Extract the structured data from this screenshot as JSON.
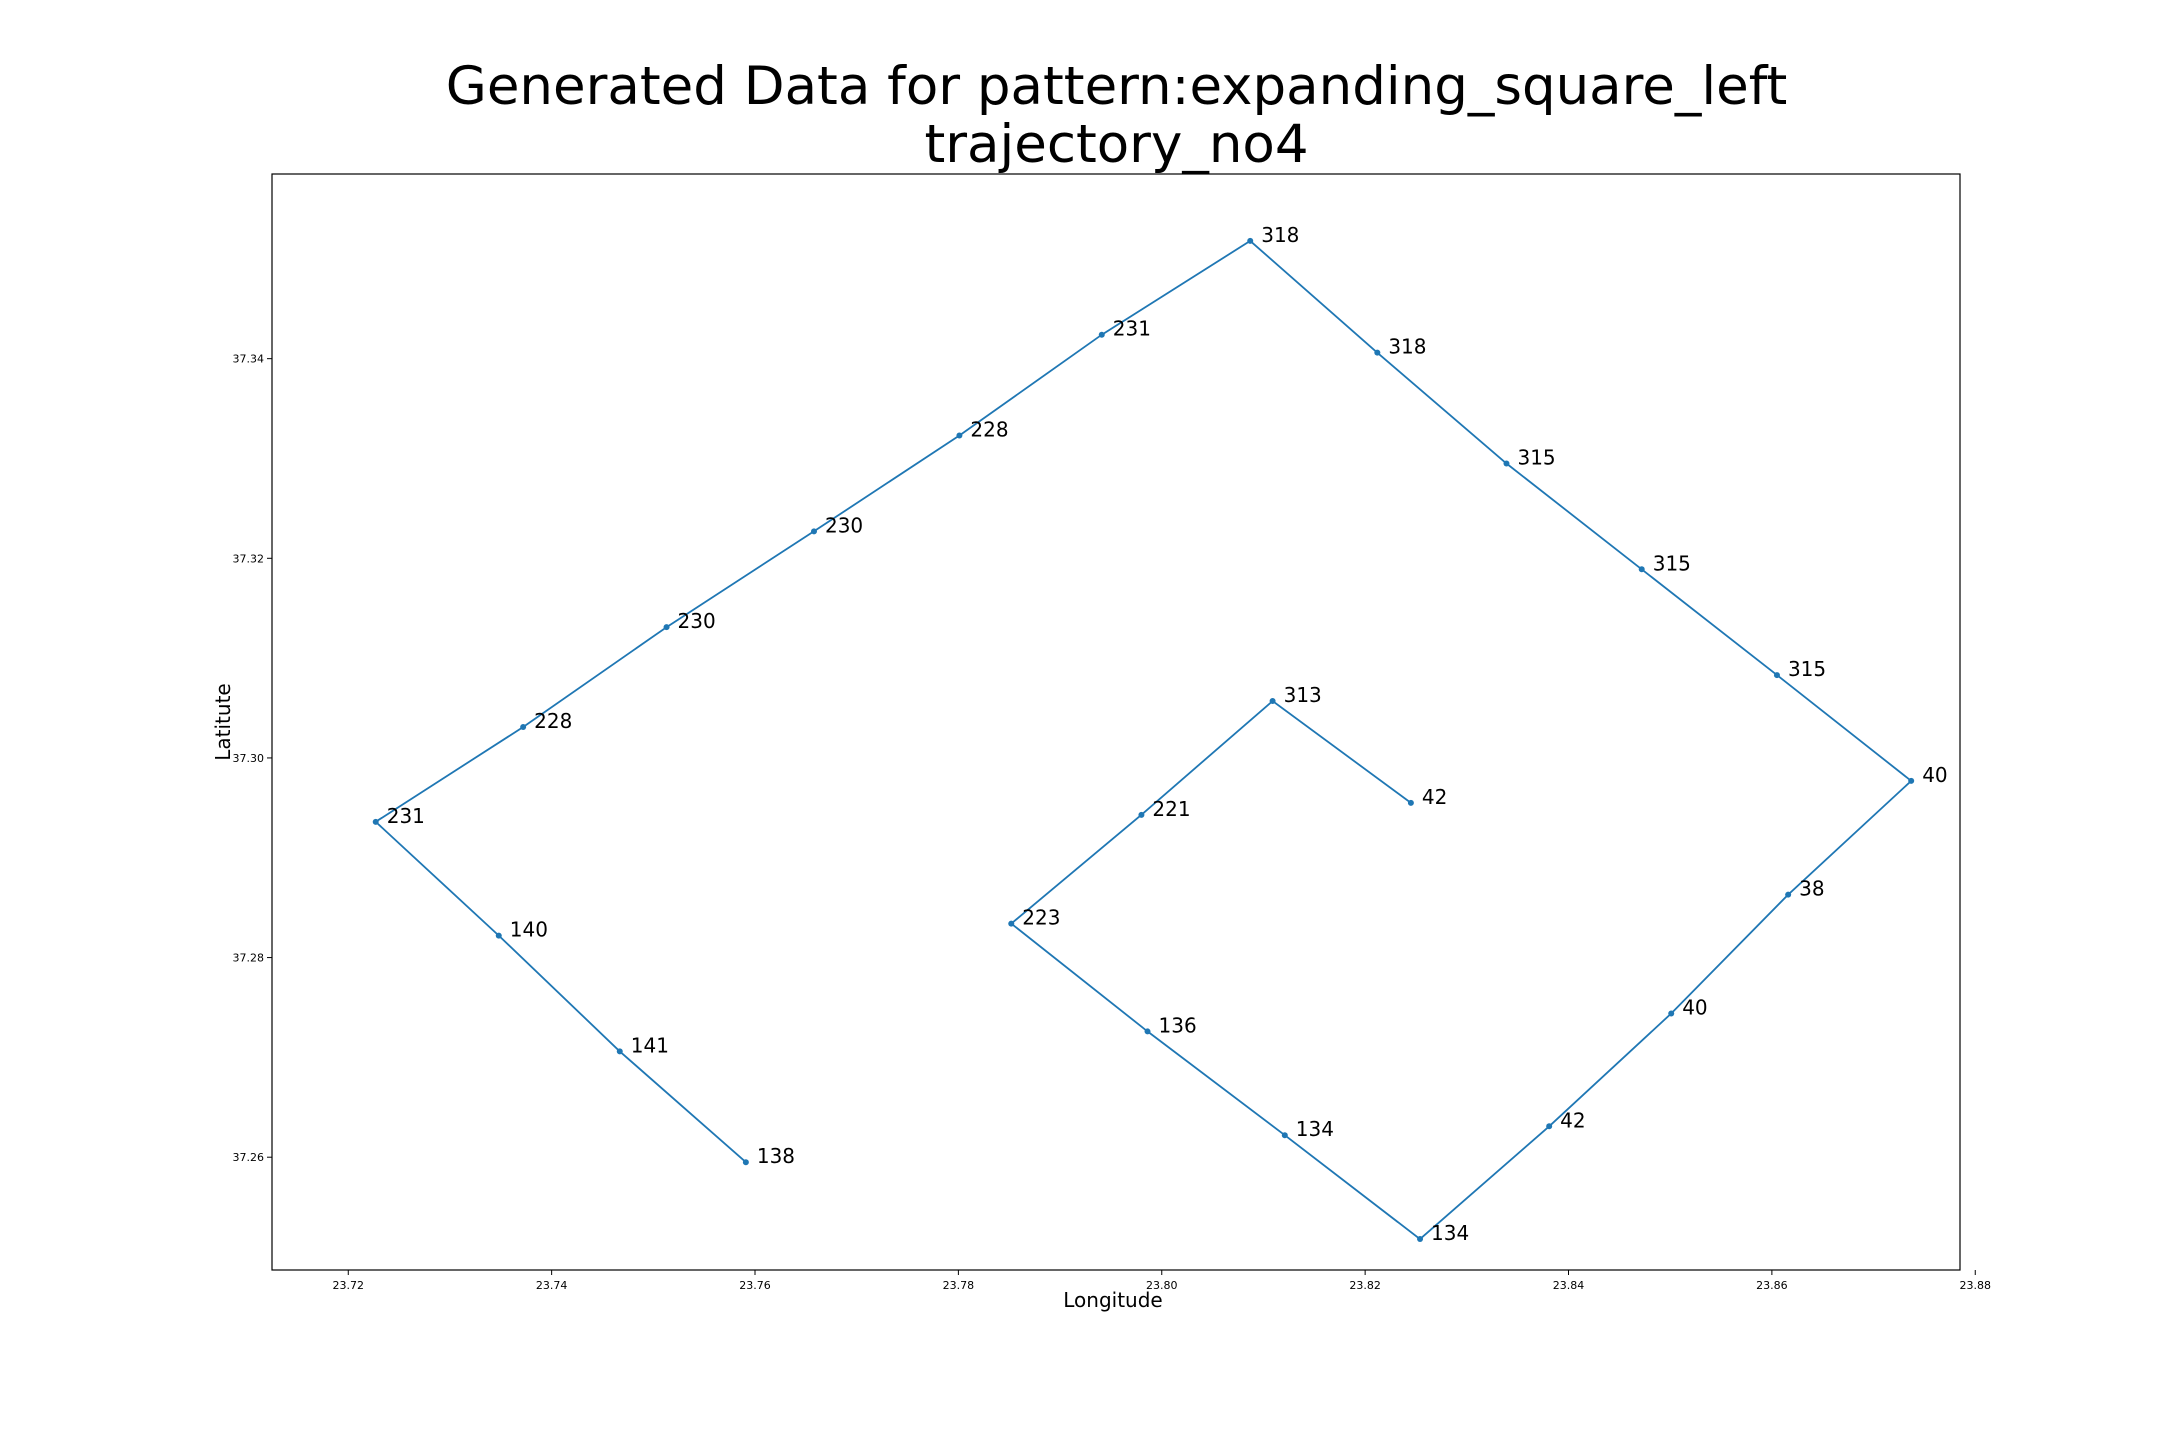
{
  "chart_data": {
    "type": "line",
    "title_line1": "Generated Data for pattern:expanding_square_left",
    "title_line2": "trajectory_no4",
    "xlabel": "Longitude",
    "ylabel": "Latitute",
    "xlim": [
      23.7125,
      23.8785
    ],
    "ylim": [
      37.2487,
      37.3585
    ],
    "x_ticks": [
      23.72,
      23.74,
      23.76,
      23.78,
      23.8,
      23.82,
      23.84,
      23.86,
      23.88
    ],
    "x_tick_labels": [
      "23.72",
      "23.74",
      "23.76",
      "23.78",
      "23.80",
      "23.82",
      "23.84",
      "23.86",
      "23.88"
    ],
    "y_ticks": [
      37.26,
      37.28,
      37.3,
      37.32,
      37.34
    ],
    "y_tick_labels": [
      "37.26",
      "37.28",
      "37.30",
      "37.32",
      "37.34"
    ],
    "grid": false,
    "line_color": "#1f77b4",
    "points": [
      {
        "x": 23.8245,
        "y": 37.2955,
        "label": "42"
      },
      {
        "x": 23.8109,
        "y": 37.3057,
        "label": "313"
      },
      {
        "x": 23.798,
        "y": 37.2943,
        "label": "221"
      },
      {
        "x": 23.7852,
        "y": 37.2834,
        "label": "223"
      },
      {
        "x": 23.7986,
        "y": 37.2726,
        "label": "136"
      },
      {
        "x": 23.8121,
        "y": 37.2622,
        "label": "134"
      },
      {
        "x": 23.8254,
        "y": 37.2518,
        "label": "134"
      },
      {
        "x": 23.8381,
        "y": 37.2631,
        "label": "42"
      },
      {
        "x": 23.8501,
        "y": 37.2744,
        "label": "40"
      },
      {
        "x": 23.8616,
        "y": 37.2863,
        "label": "38"
      },
      {
        "x": 23.8737,
        "y": 37.2977,
        "label": "40"
      },
      {
        "x": 23.8605,
        "y": 37.3083,
        "label": "315"
      },
      {
        "x": 23.8472,
        "y": 37.3189,
        "label": "315"
      },
      {
        "x": 23.8339,
        "y": 37.3295,
        "label": "315"
      },
      {
        "x": 23.8212,
        "y": 37.3406,
        "label": "318"
      },
      {
        "x": 23.8087,
        "y": 37.3518,
        "label": "318"
      },
      {
        "x": 23.7941,
        "y": 37.3424,
        "label": "231"
      },
      {
        "x": 23.7801,
        "y": 37.3323,
        "label": "228"
      },
      {
        "x": 23.7658,
        "y": 37.3227,
        "label": "230"
      },
      {
        "x": 23.7513,
        "y": 37.3131,
        "label": "230"
      },
      {
        "x": 23.7372,
        "y": 37.3031,
        "label": "228"
      },
      {
        "x": 23.7227,
        "y": 37.2936,
        "label": "231"
      },
      {
        "x": 23.7348,
        "y": 37.2822,
        "label": "140"
      },
      {
        "x": 23.7467,
        "y": 37.2706,
        "label": "141"
      },
      {
        "x": 23.7591,
        "y": 37.2595,
        "label": "138"
      }
    ]
  }
}
